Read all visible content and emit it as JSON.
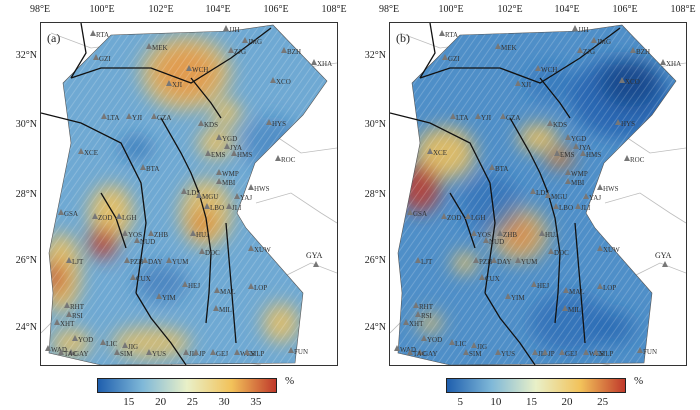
{
  "panels": [
    {
      "label": "(a)",
      "colorbar": {
        "ticks": [
          "15",
          "20",
          "25",
          "30",
          "35"
        ],
        "unit": "%",
        "range": [
          10,
          38
        ]
      },
      "stations": [
        "RTA",
        "JJH",
        "GZI",
        "MEK",
        "XJI",
        "WCH",
        "ZJG",
        "JMG",
        "BZH",
        "XHA",
        "XCO",
        "HYS",
        "LTA",
        "YJI",
        "KDS",
        "GZA",
        "YGD",
        "JYA",
        "EMS",
        "HMS",
        "ROC",
        "WMP",
        "MBI",
        "HWS",
        "XCE",
        "BTA",
        "LDS",
        "MGU",
        "YAJ",
        "LBO",
        "JLI",
        "GSA",
        "ZOD",
        "LGH",
        "YOS",
        "ZHB",
        "HUJ",
        "NUD",
        "DOC",
        "XUW",
        "DAY",
        "YUM",
        "PZH",
        "LJT",
        "CUX",
        "HEJ",
        "MAL",
        "LOP",
        "YIM",
        "MIL",
        "RHT",
        "RSI",
        "XHT",
        "YOD",
        "LIC",
        "JIG",
        "WAD",
        "GAY",
        "YUS",
        "WES",
        "MLP",
        "FUN",
        "JIS",
        "GEJ",
        "TAC",
        "SIM",
        "JP"
      ]
    },
    {
      "label": "(b)",
      "colorbar": {
        "ticks": [
          "5",
          "10",
          "15",
          "20",
          "25"
        ],
        "unit": "%",
        "range": [
          3,
          28
        ]
      },
      "stations": [
        "RTA",
        "JJH",
        "GZI",
        "MEK",
        "XJI",
        "WCH",
        "ZJG",
        "JMG",
        "BZH",
        "XHA",
        "XCO",
        "HYS",
        "LTA",
        "YJI",
        "KDS",
        "GZA",
        "YGD",
        "JYA",
        "EMS",
        "HMS",
        "ROC",
        "WMP",
        "MBI",
        "HWS",
        "XCE",
        "BTA",
        "LDS",
        "MGU",
        "YAJ",
        "LBO",
        "JLI",
        "GSA",
        "ZOD",
        "LGH",
        "YOS",
        "ZHB",
        "HUJ",
        "NUD",
        "DOC",
        "XUW",
        "DAY",
        "YUM",
        "PZH",
        "LJT",
        "CUX",
        "HEJ",
        "MAL",
        "LOP",
        "YIM",
        "MIL",
        "RHT",
        "RSI",
        "XHT",
        "YOD",
        "LIC",
        "JIG",
        "WAD",
        "GAY",
        "YUS",
        "WES",
        "MLP",
        "FUN",
        "JIS",
        "GEJ",
        "TAC",
        "SIM",
        "JP"
      ]
    }
  ],
  "axes": {
    "lon_ticks": [
      "98°E",
      "100°E",
      "102°E",
      "104°E",
      "106°E",
      "108°E"
    ],
    "lat_ticks": [
      "32°N",
      "30°N",
      "28°N",
      "26°N",
      "24°N"
    ]
  },
  "outside_station": "GYA",
  "colors": {
    "low": "#1f5fae",
    "mid_low": "#7fb8d8",
    "mid": "#e9f0c8",
    "mid_high": "#f2c25a",
    "high": "#c0392b",
    "fault": "#111111",
    "border": "#bdbdbd",
    "station": "#777777"
  }
}
